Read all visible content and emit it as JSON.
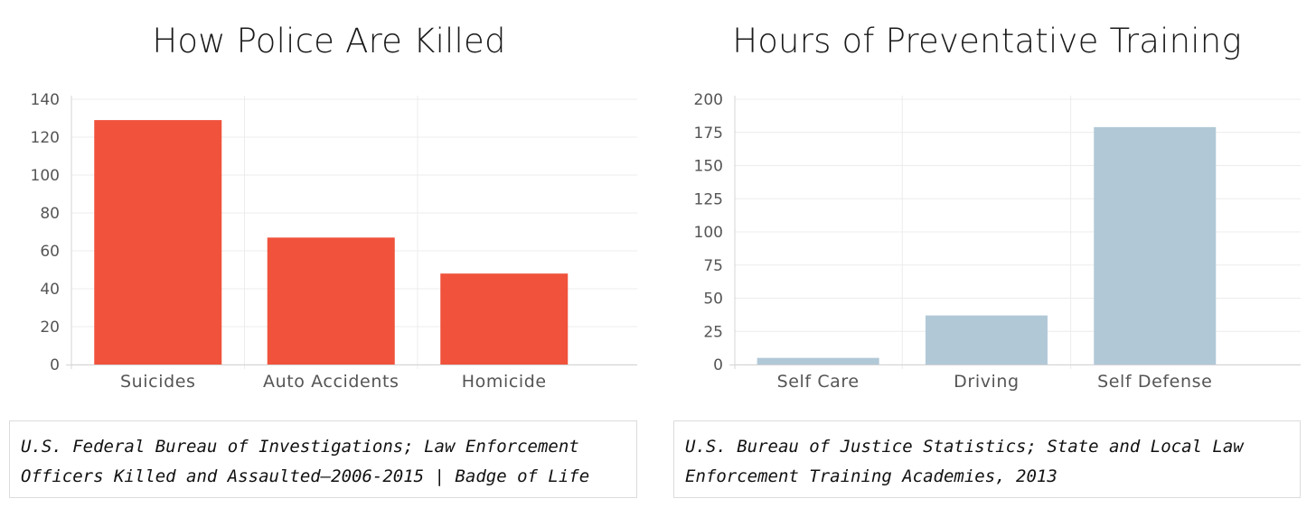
{
  "chart_data": [
    {
      "type": "bar",
      "title": "How Police Are Killed",
      "categories": [
        "Suicides",
        "Auto Accidents",
        "Homicide"
      ],
      "values": [
        129,
        67,
        48
      ],
      "yticks": [
        0,
        20,
        40,
        60,
        80,
        100,
        120,
        140
      ],
      "ylim": [
        0,
        140
      ],
      "xlabel": "",
      "ylabel": "",
      "grid": true,
      "color": "#f0523c",
      "source": "U.S. Federal Bureau of Investigations; Law Enforcement Officers Killed and Assaulted—2006-2015 | Badge of Life"
    },
    {
      "type": "bar",
      "title": "Hours of Preventative Training",
      "categories": [
        "Self Care",
        "Driving",
        "Self Defense"
      ],
      "values": [
        5,
        37,
        179
      ],
      "yticks": [
        0,
        25,
        50,
        75,
        100,
        125,
        150,
        175,
        200
      ],
      "ylim": [
        0,
        200
      ],
      "xlabel": "",
      "ylabel": "",
      "grid": true,
      "color": "#b1c8d7",
      "source": "U.S. Bureau of Justice Statistics; State and Local Law Enforcement Training Academies, 2013"
    }
  ]
}
